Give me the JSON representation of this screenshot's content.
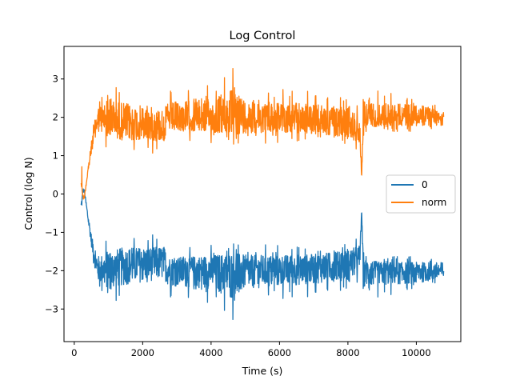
{
  "chart_data": {
    "type": "line",
    "title": "Log Control",
    "xlabel": "Time (s)",
    "ylabel": "Control (log N)",
    "xlim": [
      -300,
      11300
    ],
    "ylim": [
      -3.85,
      3.85
    ],
    "xticks": [
      0,
      2000,
      4000,
      6000,
      8000,
      10000
    ],
    "xtick_labels": [
      "0",
      "2000",
      "4000",
      "6000",
      "8000",
      "10000"
    ],
    "yticks": [
      -3,
      -2,
      -1,
      0,
      1,
      2,
      3
    ],
    "ytick_labels": [
      "−3",
      "−2",
      "−1",
      "0",
      "1",
      "2",
      "3"
    ],
    "grid": false,
    "legend_position": "center-right",
    "series": [
      {
        "name": "0",
        "color": "#1f77b4",
        "approx_envelope": {
          "x": [
            200,
            260,
            300,
            400,
            500,
            600,
            700,
            1000,
            1500,
            2000,
            2650,
            2700,
            3000,
            4000,
            4700,
            5000,
            6000,
            7000,
            8000,
            8350,
            8400,
            8450,
            9000,
            10000,
            10800
          ],
          "center": [
            -0.3,
            0.1,
            0.05,
            -0.6,
            -1.2,
            -1.7,
            -2.0,
            -2.0,
            -1.85,
            -1.8,
            -1.75,
            -1.95,
            -1.95,
            -1.95,
            -1.95,
            -1.95,
            -1.95,
            -1.9,
            -1.8,
            -1.6,
            -0.4,
            -1.95,
            -2.0,
            -2.0,
            -2.0
          ],
          "low": [
            -0.55,
            0.0,
            0.0,
            -0.8,
            -1.5,
            -2.1,
            -2.5,
            -2.9,
            -2.8,
            -2.7,
            -2.6,
            -2.7,
            -2.8,
            -2.9,
            -3.5,
            -2.9,
            -2.8,
            -2.7,
            -2.6,
            -2.5,
            -0.5,
            -2.8,
            -2.7,
            -2.6,
            -2.4
          ],
          "high": [
            -0.2,
            0.2,
            0.1,
            -0.4,
            -0.9,
            -1.3,
            -1.3,
            -1.05,
            -1.0,
            -1.05,
            -1.05,
            -1.4,
            -1.4,
            -1.3,
            -1.2,
            -1.3,
            -1.3,
            -1.3,
            -1.2,
            -1.1,
            -0.35,
            -1.5,
            -1.6,
            -1.6,
            -1.6
          ]
        }
      },
      {
        "name": "norm",
        "color": "#ff7f0e",
        "approx_envelope": {
          "x": [
            200,
            260,
            300,
            400,
            500,
            600,
            700,
            1000,
            1500,
            2000,
            2650,
            2700,
            3000,
            4000,
            4700,
            5000,
            6000,
            7000,
            8000,
            8350,
            8400,
            8450,
            9000,
            10000,
            10800
          ],
          "center": [
            0.3,
            -0.1,
            -0.05,
            0.6,
            1.2,
            1.7,
            2.0,
            2.0,
            1.85,
            1.8,
            1.75,
            1.95,
            1.95,
            1.95,
            1.95,
            1.95,
            1.95,
            1.9,
            1.8,
            1.6,
            0.4,
            1.95,
            2.0,
            2.0,
            2.0
          ],
          "low": [
            0.2,
            -0.2,
            -0.1,
            0.4,
            0.9,
            1.3,
            1.3,
            1.05,
            1.0,
            1.05,
            1.05,
            1.4,
            1.4,
            1.3,
            1.2,
            1.3,
            1.3,
            1.3,
            1.2,
            1.1,
            0.35,
            1.5,
            1.6,
            1.6,
            1.6
          ],
          "high": [
            1.55,
            0.0,
            0.0,
            0.8,
            1.5,
            2.1,
            2.5,
            2.9,
            2.8,
            2.7,
            2.6,
            2.7,
            2.8,
            2.9,
            3.5,
            2.9,
            2.8,
            2.7,
            2.6,
            2.5,
            0.5,
            2.8,
            2.7,
            2.6,
            2.4
          ]
        }
      }
    ]
  }
}
